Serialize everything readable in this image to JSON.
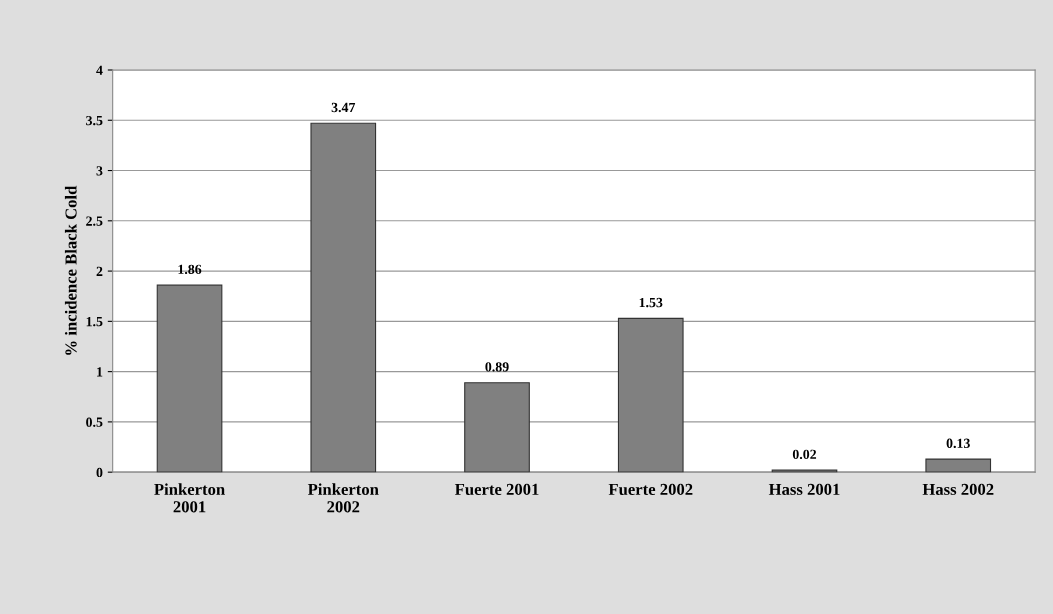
{
  "chart_data": {
    "type": "bar",
    "ylabel": "% incidence Black Cold",
    "categories": [
      "Pinkerton\n2001",
      "Pinkerton\n2002",
      "Fuerte 2001",
      "Fuerte 2002",
      "Hass 2001",
      "Hass 2002"
    ],
    "values": [
      1.86,
      3.47,
      0.89,
      1.53,
      0.02,
      0.13
    ],
    "color": "#808080",
    "ylim": [
      0,
      4
    ],
    "yticks": [
      0,
      {
        "value": 0.5,
        "label": "0.5"
      },
      1,
      {
        "value": 1.5,
        "label": "1.5"
      },
      2,
      {
        "value": 2.5,
        "label": "2.5"
      },
      3,
      {
        "value": 3.5,
        "label": "3.5"
      },
      4
    ],
    "grid": "y",
    "data_labels": true,
    "legend": false
  }
}
